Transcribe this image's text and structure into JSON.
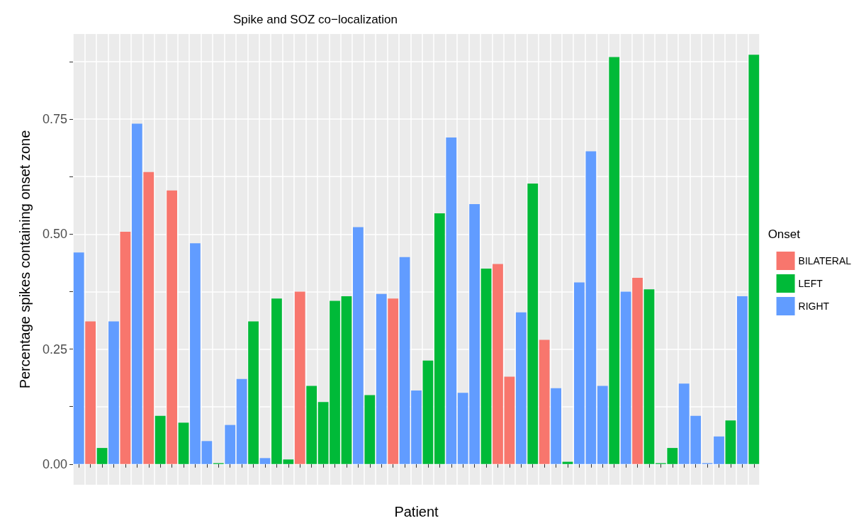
{
  "chart_data": {
    "type": "bar",
    "title": "Spike and SOZ co−localization",
    "xlabel": "Patient",
    "ylabel": "Percentage spikes containing onset zone",
    "legend_title": "Onset",
    "legend": "right",
    "categories": [
      null,
      null,
      null,
      null,
      null,
      null,
      null,
      null,
      null,
      null,
      null,
      null,
      null,
      null,
      null,
      null,
      null,
      null,
      null,
      null,
      null,
      null,
      null,
      null,
      null,
      null,
      null,
      null,
      null,
      null,
      null,
      null,
      null,
      null,
      null,
      null,
      null,
      null,
      null,
      null,
      null,
      null,
      null,
      null,
      null,
      null,
      null,
      null,
      null,
      null,
      null,
      null,
      null,
      null,
      null,
      null,
      null,
      null,
      null
    ],
    "series": [
      {
        "name": "BILATERAL",
        "color": "#f8766d",
        "values": [
          null,
          0.31,
          null,
          null,
          0.505,
          null,
          0.635,
          null,
          0.595,
          null,
          null,
          null,
          null,
          null,
          null,
          null,
          null,
          null,
          null,
          0.375,
          null,
          null,
          null,
          null,
          null,
          null,
          null,
          0.36,
          null,
          null,
          null,
          null,
          null,
          null,
          null,
          null,
          0.435,
          0.19,
          null,
          null,
          0.27,
          null,
          null,
          null,
          null,
          null,
          null,
          null,
          0.405,
          null,
          null,
          null,
          null,
          null,
          null,
          null,
          null,
          null,
          null
        ]
      },
      {
        "name": "LEFT",
        "color": "#00ba38",
        "values": [
          null,
          null,
          0.035,
          null,
          null,
          null,
          null,
          0.105,
          null,
          0.09,
          null,
          null,
          0.002,
          null,
          null,
          0.31,
          null,
          0.36,
          0.01,
          null,
          0.17,
          0.135,
          0.355,
          0.365,
          null,
          0.15,
          null,
          null,
          null,
          null,
          0.225,
          0.545,
          null,
          null,
          null,
          0.425,
          null,
          null,
          null,
          0.61,
          null,
          null,
          0.005,
          null,
          null,
          null,
          0.885,
          null,
          null,
          0.38,
          0.002,
          0.035,
          null,
          null,
          null,
          null,
          0.095,
          null,
          0.89
        ]
      },
      {
        "name": "RIGHT",
        "color": "#619cff",
        "values": [
          0.46,
          null,
          null,
          0.31,
          null,
          0.74,
          null,
          null,
          null,
          null,
          0.48,
          0.05,
          null,
          0.085,
          0.185,
          null,
          0.013,
          null,
          null,
          null,
          null,
          null,
          null,
          null,
          0.515,
          null,
          0.37,
          null,
          0.45,
          0.16,
          null,
          null,
          0.71,
          0.155,
          0.565,
          null,
          null,
          null,
          0.33,
          null,
          null,
          0.165,
          null,
          0.395,
          0.68,
          0.17,
          null,
          0.375,
          null,
          null,
          null,
          null,
          0.175,
          0.105,
          0.002,
          0.06,
          null,
          0.365,
          null
        ]
      }
    ],
    "ylim": [
      -0.045,
      0.935
    ],
    "yticks": [
      {
        "value": 0,
        "label": "0.00"
      },
      {
        "value": 0.125,
        "label": null
      },
      {
        "value": 0.25,
        "label": "0.25"
      },
      {
        "value": 0.375,
        "label": null
      },
      {
        "value": 0.5,
        "label": "0.50"
      },
      {
        "value": 0.625,
        "label": null
      },
      {
        "value": 0.75,
        "label": "0.75"
      },
      {
        "value": 0.875,
        "label": null
      }
    ],
    "grid": true
  }
}
